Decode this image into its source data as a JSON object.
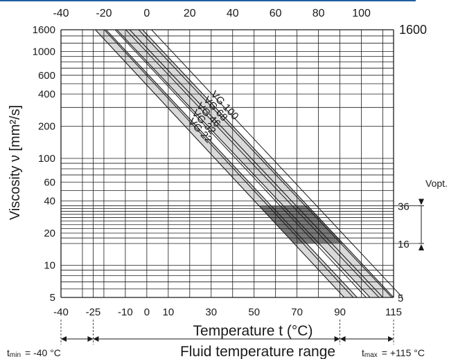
{
  "chart_data": {
    "type": "line",
    "ylabel": "Viscosity ν [mm²/s]",
    "xlabel": "Temperature t (°C)",
    "bottom_range_label": "Fluid temperature range",
    "xlim": [
      -40,
      115
    ],
    "ylim": [
      5,
      1600
    ],
    "yscale": "log",
    "grid": true,
    "top_ticks": [
      "-40",
      "-20",
      "0",
      "20",
      "40",
      "60",
      "80",
      "100"
    ],
    "bottom_ticks": [
      "-40",
      "-25",
      "-10",
      "0",
      "10",
      "30",
      "50",
      "70",
      "90",
      "115"
    ],
    "left_ticks": [
      "1600",
      "1000",
      "600",
      "400",
      "200",
      "100",
      "60",
      "40",
      "20",
      "10",
      "5"
    ],
    "right_ticks": [
      "1600",
      "36",
      "16",
      "5"
    ],
    "series": [
      {
        "name": "VG 22",
        "x": [
          -24,
          92
        ],
        "y": [
          1600,
          5
        ]
      },
      {
        "name": "VG 32",
        "x": [
          -19,
          98
        ],
        "y": [
          1600,
          5
        ]
      },
      {
        "name": "VG 46",
        "x": [
          -14,
          104
        ],
        "y": [
          1600,
          5
        ]
      },
      {
        "name": "VG 68",
        "x": [
          -8,
          110
        ],
        "y": [
          1600,
          5
        ]
      },
      {
        "name": "VG 100",
        "x": [
          -2,
          115
        ],
        "y": [
          1600,
          5
        ]
      }
    ],
    "optimal_band": {
      "label": "Vopt.",
      "low": 16,
      "high": 36,
      "low_label": "16",
      "high_label": "36"
    },
    "t_min_label": "t",
    "t_min_sub": "min",
    "t_min_value": "= -40 °C",
    "t_max_label": "t",
    "t_max_sub": "max",
    "t_max_value": "= +115 °C",
    "colors": {
      "light_band": "#d9d9d9",
      "dark_band": "#7a7a7a",
      "grid": "#1a1a1a",
      "top_rule": "#1f5fa0"
    }
  }
}
